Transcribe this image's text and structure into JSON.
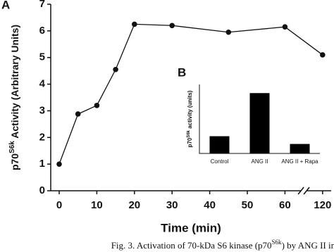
{
  "chart_data": [
    {
      "type": "line",
      "panel": "A",
      "x_label": "Time (min)",
      "y_label": {
        "main": "p70",
        "sup": "S6k",
        "rest": " Activity (Arbitrary Units)"
      },
      "x": [
        0,
        5,
        10,
        15,
        20,
        30,
        45,
        60,
        120
      ],
      "values": [
        1.0,
        2.88,
        3.2,
        4.55,
        6.25,
        6.2,
        5.95,
        6.15,
        5.1
      ],
      "color": "#111111",
      "xlim": [
        0,
        120
      ],
      "xticks": [
        0,
        10,
        20,
        30,
        40,
        50,
        60,
        120
      ],
      "axis_break": true,
      "ylim": [
        0,
        7
      ],
      "yticks": [
        0,
        1,
        2,
        3,
        4,
        5,
        6,
        7
      ]
    },
    {
      "type": "bar",
      "panel": "B",
      "y_label": {
        "main": "p70",
        "sup": "S6k",
        "rest": " activity (units)"
      },
      "categories": [
        "Control",
        "ANG II",
        "ANG II + Rapa"
      ],
      "values": [
        1.0,
        3.5,
        0.55
      ],
      "color": "#000000",
      "ylim": [
        0,
        4
      ]
    }
  ],
  "caption": {
    "main": "Fig. 3.  Activation of 70-kDa S6 kinase (p70",
    "sup": "S6k",
    "rest": ") by ANG II in human cSMCs"
  }
}
